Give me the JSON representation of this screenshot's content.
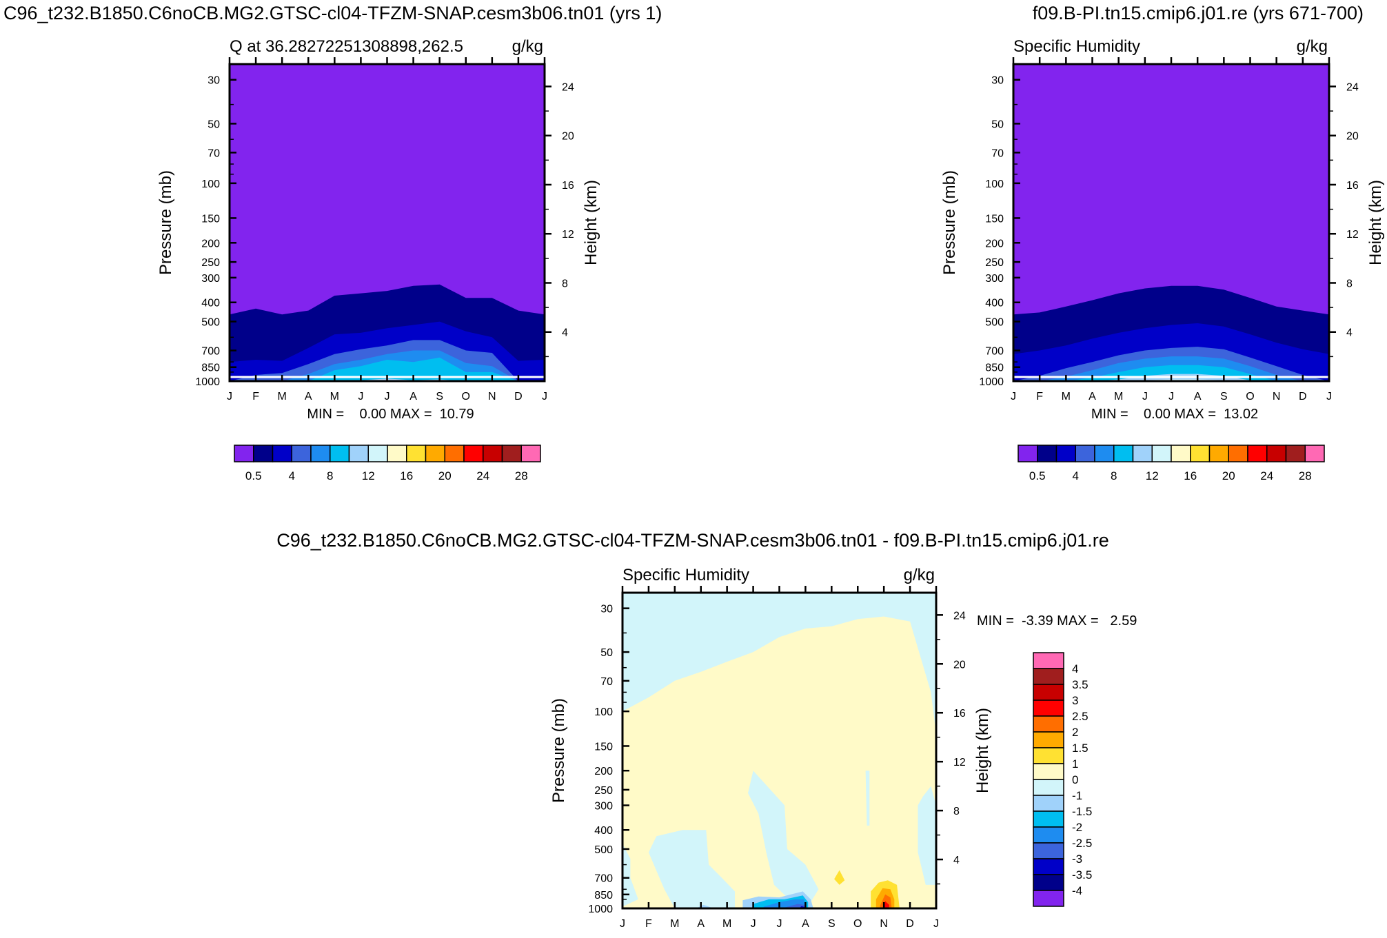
{
  "figure": {
    "left_title": "C96_t232.B1850.C6noCB.MG2.GTSC-cl04-TFZM-SNAP.cesm3b06.tn01 (yrs 1)",
    "right_title": "f09.B-PI.tn15.cmip6.j01.re (yrs 671-700)",
    "diff_title": "C96_t232.B1850.C6noCB.MG2.GTSC-cl04-TFZM-SNAP.cesm3b06.tn01 - f09.B-PI.tn15.cmip6.j01.re"
  },
  "colors": {
    "abs": [
      "#8224ee",
      "#00008a",
      "#0000c8",
      "#3c64dc",
      "#1e8cf0",
      "#00bef0",
      "#a0d2fa",
      "#d2f5fa",
      "#fffac8",
      "#ffe132",
      "#ffaa00",
      "#ff6e00",
      "#ff0000",
      "#c80000",
      "#a01e1e",
      "#ff69b4"
    ],
    "diff": [
      "#8224ee",
      "#00008a",
      "#0000c8",
      "#3c64dc",
      "#1e8cf0",
      "#00bef0",
      "#a0d2fa",
      "#d2f5fa",
      "#fffac8",
      "#ffe132",
      "#ffaa00",
      "#ff6e00",
      "#ff0000",
      "#c80000",
      "#a01e1e",
      "#ff69b4"
    ]
  },
  "chart_data": [
    {
      "type": "heatmap",
      "title": "Q at 36.28272251308898,262.5",
      "units": "g/kg",
      "xlabel": "",
      "ylabel": "Pressure (mb)",
      "ylabel_right": "Height (km)",
      "x_ticks": [
        "J",
        "F",
        "M",
        "A",
        "M",
        "J",
        "J",
        "A",
        "S",
        "O",
        "N",
        "D",
        "J"
      ],
      "y_ticks": [
        "30",
        "50",
        "70",
        "100",
        "150",
        "200",
        "250",
        "300",
        "400",
        "500",
        "700",
        "850",
        "1000"
      ],
      "y_ticks_right": [
        "24",
        "20",
        "16",
        "12",
        "8",
        "4"
      ],
      "ylim": [
        1000,
        25
      ],
      "min_max_text": "MIN =    0.00 MAX =  10.79",
      "levels": [
        "0.5",
        "4",
        "8",
        "12",
        "16",
        "20",
        "24",
        "28"
      ],
      "contours": {
        "months": [
          "J",
          "F",
          "M",
          "A",
          "M",
          "J",
          "J",
          "A",
          "S",
          "O",
          "N",
          "D",
          "J"
        ],
        "bounds": [
          [
            1,
            [
              460,
              430,
              460,
              440,
              370,
              360,
              350,
              330,
              325,
              380,
              380,
              440,
              460
            ]
          ],
          [
            2,
            [
              800,
              780,
              790,
              680,
              580,
              570,
              540,
              520,
              500,
              560,
              600,
              790,
              780
            ]
          ],
          [
            3,
            [
              1000,
              930,
              910,
              820,
              730,
              690,
              660,
              620,
              620,
              700,
              720,
              1000,
              1000
            ]
          ],
          [
            4,
            [
              1000,
              1000,
              1000,
              920,
              820,
              780,
              730,
              700,
              700,
              810,
              840,
              1000,
              1000
            ]
          ],
          [
            5,
            [
              1000,
              1000,
              1000,
              1000,
              880,
              840,
              780,
              800,
              760,
              900,
              900,
              1000,
              1000
            ]
          ],
          [
            6,
            [
              1000,
              1000,
              1000,
              1000,
              1000,
              990,
              970,
              990,
              980,
              1000,
              1000,
              1000,
              1000
            ]
          ]
        ]
      }
    },
    {
      "type": "heatmap",
      "title": "Specific Humidity",
      "units": "g/kg",
      "xlabel": "",
      "ylabel": "Pressure (mb)",
      "ylabel_right": "Height (km)",
      "x_ticks": [
        "J",
        "F",
        "M",
        "A",
        "M",
        "J",
        "J",
        "A",
        "S",
        "O",
        "N",
        "D",
        "J"
      ],
      "y_ticks": [
        "30",
        "50",
        "70",
        "100",
        "150",
        "200",
        "250",
        "300",
        "400",
        "500",
        "700",
        "850",
        "1000"
      ],
      "y_ticks_right": [
        "24",
        "20",
        "16",
        "12",
        "8",
        "4"
      ],
      "ylim": [
        1000,
        25
      ],
      "min_max_text": "MIN =    0.00 MAX =  13.02",
      "levels": [
        "0.5",
        "4",
        "8",
        "12",
        "16",
        "20",
        "24",
        "28"
      ],
      "contours": {
        "months": [
          "J",
          "F",
          "M",
          "A",
          "M",
          "J",
          "J",
          "A",
          "S",
          "O",
          "N",
          "D",
          "J"
        ],
        "bounds": [
          [
            1,
            [
              460,
              450,
              420,
              390,
              360,
              340,
              330,
              330,
              345,
              380,
              420,
              440,
              460
            ]
          ],
          [
            2,
            [
              730,
              700,
              660,
              610,
              570,
              540,
              520,
              510,
              530,
              580,
              640,
              690,
              730
            ]
          ],
          [
            3,
            [
              1000,
              940,
              860,
              800,
              740,
              700,
              680,
              670,
              690,
              760,
              840,
              930,
              1000
            ]
          ],
          [
            4,
            [
              1000,
              1000,
              950,
              880,
              810,
              770,
              750,
              750,
              770,
              840,
              930,
              1000,
              1000
            ]
          ],
          [
            5,
            [
              1000,
              1000,
              1000,
              960,
              900,
              850,
              830,
              830,
              850,
              920,
              1000,
              1000,
              1000
            ]
          ],
          [
            6,
            [
              1000,
              1000,
              1000,
              1000,
              980,
              940,
              920,
              920,
              940,
              990,
              1000,
              1000,
              1000
            ]
          ],
          [
            7,
            [
              1000,
              1000,
              1000,
              1000,
              1000,
              990,
              980,
              980,
              990,
              1000,
              1000,
              1000,
              1000
            ]
          ]
        ]
      }
    },
    {
      "type": "heatmap",
      "title": "Specific Humidity",
      "units": "g/kg",
      "xlabel": "",
      "ylabel": "Pressure (mb)",
      "ylabel_right": "Height (km)",
      "x_ticks": [
        "J",
        "F",
        "M",
        "A",
        "M",
        "J",
        "J",
        "A",
        "S",
        "O",
        "N",
        "D",
        "J"
      ],
      "y_ticks": [
        "30",
        "50",
        "70",
        "100",
        "150",
        "200",
        "250",
        "300",
        "400",
        "500",
        "700",
        "850",
        "1000"
      ],
      "y_ticks_right": [
        "24",
        "20",
        "16",
        "12",
        "8",
        "4"
      ],
      "ylim": [
        1000,
        25
      ],
      "min_max_text": "MIN =  -3.39 MAX =   2.59",
      "levels": [
        "4",
        "3.5",
        "3",
        "2.5",
        "2",
        "1.5",
        "1",
        "0",
        "-1",
        "-1.5",
        "-2",
        "-2.5",
        "-3",
        "-3.5",
        "-4"
      ],
      "background_class": 8,
      "regions": [
        {
          "class": 7,
          "pts": [
            [
              0,
              25
            ],
            [
              0,
              100
            ],
            [
              1,
              85
            ],
            [
              2,
              70
            ],
            [
              3,
              63
            ],
            [
              4,
              56
            ],
            [
              5,
              50
            ],
            [
              6,
              42
            ],
            [
              7,
              38
            ],
            [
              8,
              37
            ],
            [
              9,
              34
            ],
            [
              10,
              33
            ],
            [
              11,
              35
            ],
            [
              11.8,
              80
            ],
            [
              12,
              130
            ],
            [
              12,
              25
            ]
          ]
        },
        {
          "class": 7,
          "pts": [
            [
              0,
              470
            ],
            [
              0.3,
              560
            ],
            [
              0.3,
              700
            ],
            [
              0.6,
              900
            ],
            [
              0,
              980
            ]
          ]
        },
        {
          "class": 7,
          "pts": [
            [
              1,
              520
            ],
            [
              1.3,
              430
            ],
            [
              2.3,
              400
            ],
            [
              3.2,
              400
            ],
            [
              3.3,
              600
            ],
            [
              3.8,
              700
            ],
            [
              4.3,
              820
            ],
            [
              4.3,
              1000
            ],
            [
              2,
              1000
            ],
            [
              1.6,
              800
            ]
          ]
        },
        {
          "class": 7,
          "pts": [
            [
              5,
              200
            ],
            [
              6.2,
              300
            ],
            [
              6.3,
              500
            ],
            [
              7,
              600
            ],
            [
              7.5,
              800
            ],
            [
              7.2,
              930
            ],
            [
              6.3,
              880
            ],
            [
              5.8,
              760
            ],
            [
              5.5,
              520
            ],
            [
              5.2,
              330
            ],
            [
              4.8,
              260
            ]
          ]
        },
        {
          "class": 7,
          "pts": [
            [
              9.3,
              200
            ],
            [
              9.45,
              200
            ],
            [
              9.45,
              380
            ],
            [
              9.35,
              380
            ]
          ]
        },
        {
          "class": 7,
          "pts": [
            [
              11.3,
              300
            ],
            [
              11.5,
              270
            ],
            [
              11.8,
              240
            ],
            [
              12,
              300
            ],
            [
              12,
              760
            ],
            [
              11.6,
              760
            ],
            [
              11.3,
              520
            ]
          ]
        },
        {
          "class": 6,
          "pts": [
            [
              4.6,
              910
            ],
            [
              5.2,
              870
            ],
            [
              6,
              880
            ],
            [
              6.9,
              820
            ],
            [
              7.2,
              900
            ],
            [
              7.3,
              1000
            ],
            [
              4.6,
              1000
            ]
          ]
        },
        {
          "class": 5,
          "pts": [
            [
              5.0,
              950
            ],
            [
              5.6,
              900
            ],
            [
              6.2,
              900
            ],
            [
              6.9,
              860
            ],
            [
              7.1,
              930
            ],
            [
              7.1,
              1000
            ],
            [
              5.0,
              1000
            ]
          ]
        },
        {
          "class": 4,
          "pts": [
            [
              5.4,
              980
            ],
            [
              6.0,
              930
            ],
            [
              6.6,
              900
            ],
            [
              6.95,
              900
            ],
            [
              7.0,
              1000
            ],
            [
              5.4,
              1000
            ]
          ]
        },
        {
          "class": 3,
          "pts": [
            [
              6.2,
              990
            ],
            [
              6.7,
              950
            ],
            [
              6.95,
              960
            ],
            [
              7.0,
              1000
            ],
            [
              6.2,
              1000
            ]
          ]
        },
        {
          "class": 2,
          "pts": [
            [
              6.75,
              1000
            ],
            [
              6.85,
              975
            ],
            [
              6.98,
              985
            ],
            [
              7.0,
              1000
            ]
          ]
        },
        {
          "class": 6,
          "pts": [
            [
              2.8,
              1000
            ],
            [
              3.1,
              960
            ],
            [
              3.5,
              1000
            ]
          ]
        },
        {
          "class": 9,
          "pts": [
            [
              9.5,
              820
            ],
            [
              9.8,
              740
            ],
            [
              10.15,
              720
            ],
            [
              10.5,
              760
            ],
            [
              10.6,
              1000
            ],
            [
              9.5,
              1000
            ]
          ]
        },
        {
          "class": 10,
          "pts": [
            [
              9.7,
              900
            ],
            [
              9.95,
              790
            ],
            [
              10.25,
              800
            ],
            [
              10.4,
              900
            ],
            [
              10.4,
              1000
            ],
            [
              9.7,
              1000
            ]
          ]
        },
        {
          "class": 11,
          "pts": [
            [
              9.85,
              970
            ],
            [
              10.05,
              850
            ],
            [
              10.25,
              880
            ],
            [
              10.3,
              1000
            ],
            [
              9.85,
              1000
            ]
          ]
        },
        {
          "class": 12,
          "pts": [
            [
              9.95,
              1000
            ],
            [
              10.05,
              920
            ],
            [
              10.2,
              960
            ],
            [
              10.2,
              1000
            ]
          ]
        },
        {
          "class": 9,
          "pts": [
            [
              8.1,
              710
            ],
            [
              8.3,
              640
            ],
            [
              8.5,
              720
            ],
            [
              8.3,
              760
            ]
          ]
        }
      ]
    }
  ]
}
